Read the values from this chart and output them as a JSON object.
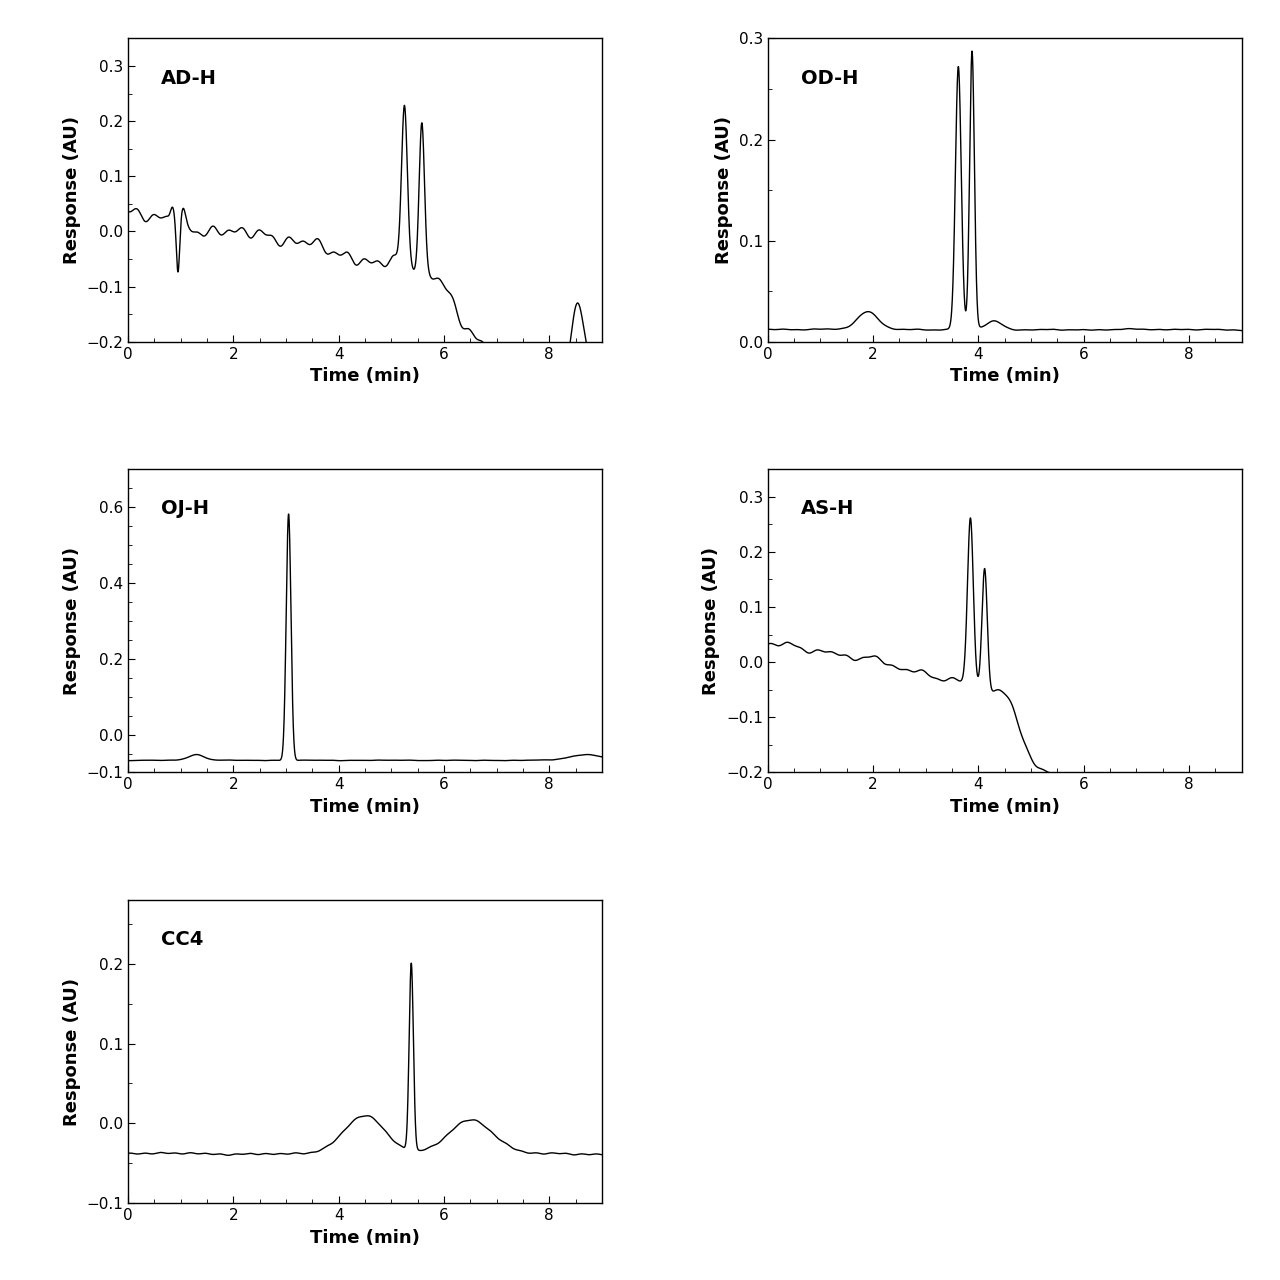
{
  "panels": [
    {
      "label": "AD-H",
      "ylim": [
        -0.2,
        0.35
      ],
      "yticks": [
        -0.2,
        -0.1,
        0.0,
        0.1,
        0.2,
        0.3
      ],
      "xlim": [
        0,
        9.0
      ],
      "xticks": [
        0,
        2,
        4,
        6,
        8
      ]
    },
    {
      "label": "OD-H",
      "ylim": [
        0.0,
        0.3
      ],
      "yticks": [
        0.0,
        0.1,
        0.2,
        0.3
      ],
      "xlim": [
        0,
        9.0
      ],
      "xticks": [
        0,
        2,
        4,
        6,
        8
      ]
    },
    {
      "label": "OJ-H",
      "ylim": [
        -0.1,
        0.7
      ],
      "yticks": [
        -0.1,
        0.0,
        0.2,
        0.4,
        0.6
      ],
      "xlim": [
        0,
        9.0
      ],
      "xticks": [
        0,
        2,
        4,
        6,
        8
      ]
    },
    {
      "label": "AS-H",
      "ylim": [
        -0.2,
        0.35
      ],
      "yticks": [
        -0.2,
        -0.1,
        0.0,
        0.1,
        0.2,
        0.3
      ],
      "xlim": [
        0,
        9.0
      ],
      "xticks": [
        0,
        2,
        4,
        6,
        8
      ]
    },
    {
      "label": "CC4",
      "ylim": [
        -0.1,
        0.28
      ],
      "yticks": [
        -0.1,
        0.0,
        0.1,
        0.2
      ],
      "xlim": [
        0,
        9.0
      ],
      "xticks": [
        0,
        2,
        4,
        6,
        8
      ]
    }
  ],
  "ylabel": "Response (AU)",
  "xlabel": "Time (min)",
  "line_color": "#000000",
  "line_width": 1.0,
  "font_size_label": 13,
  "font_size_tick": 11,
  "font_size_tag": 14
}
